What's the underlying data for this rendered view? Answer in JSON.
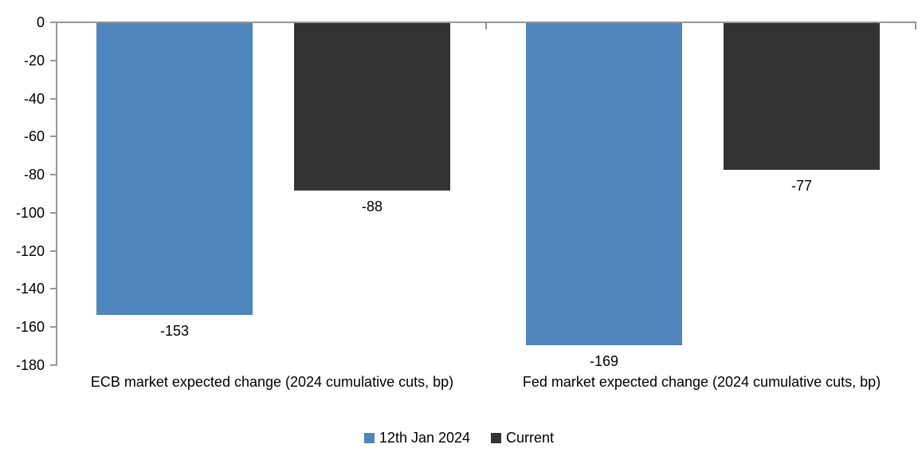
{
  "page": {
    "background": "#ffffff"
  },
  "chart_data": {
    "type": "bar",
    "orientation": "vertical",
    "categories": [
      "ECB market expected change (2024 cumulative cuts, bp)",
      "Fed market expected change (2024 cumulative cuts, bp)"
    ],
    "series": [
      {
        "name": "12th Jan 2024",
        "color": "#4E86BD",
        "values": [
          -153,
          -169
        ]
      },
      {
        "name": "Current",
        "color": "#333333",
        "values": [
          -88,
          -77
        ]
      }
    ],
    "yticks": [
      0,
      -20,
      -40,
      -60,
      -80,
      -100,
      -120,
      -140,
      -160,
      -180
    ],
    "ylim": [
      -180,
      0
    ],
    "ytick_step": 20,
    "grid": false,
    "data_labels_visible": true,
    "legend_position": "bottom",
    "axis_color": "#979797",
    "text_color": "#000000",
    "title": "",
    "xlabel": "",
    "ylabel": ""
  }
}
